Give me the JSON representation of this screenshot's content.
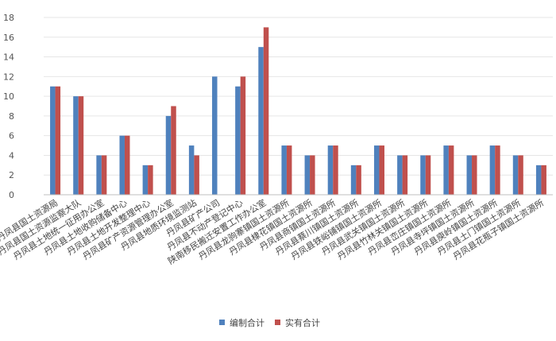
{
  "chart_data": {
    "type": "bar",
    "title": "",
    "xlabel": "",
    "ylabel": "",
    "ylim": [
      0,
      18
    ],
    "yticks": [
      0,
      2,
      4,
      6,
      8,
      10,
      12,
      14,
      16,
      18
    ],
    "grid": true,
    "legend_position": "bottom",
    "categories": [
      "丹凤县国土资源局",
      "丹凤县国土资源监察大队",
      "丹凤县土地统一征用办公室",
      "丹凤县土地收购储备中心",
      "丹凤县土地开发整理中心",
      "丹凤县矿产资源管理办公室",
      "丹凤县地质环境监测站",
      "丹凤县矿产公司",
      "丹凤县不动产登记中心",
      "陕南移民搬迁安置工作办公室",
      "丹凤县龙驹寨镇国土资源所",
      "丹凤县棣花镇国土资源所",
      "丹凤县商镇国土资源所",
      "丹凤县蔡川镇国土资源所",
      "丹凤县铁峪铺镇国土资源所",
      "丹凤县武关镇国土资源所",
      "丹凤县竹林关镇国土资源所",
      "丹凤县峦庄镇国土资源所",
      "丹凤县寺坪镇国土资源所",
      "丹凤县庾岭镇国土资源所",
      "丹凤县土门镇国土资源所",
      "丹凤县花瓶子镇国土资源所"
    ],
    "series": [
      {
        "name": "编制合计",
        "color": "#4f81bd",
        "values": [
          11,
          10,
          4,
          6,
          3,
          8,
          5,
          12,
          11,
          15,
          5,
          4,
          5,
          3,
          5,
          4,
          4,
          5,
          4,
          5,
          4,
          3
        ]
      },
      {
        "name": "实有合计",
        "color": "#c0504d",
        "values": [
          11,
          10,
          4,
          6,
          3,
          9,
          4,
          0,
          12,
          17,
          5,
          4,
          5,
          3,
          5,
          4,
          4,
          5,
          4,
          5,
          4,
          3
        ]
      }
    ]
  }
}
